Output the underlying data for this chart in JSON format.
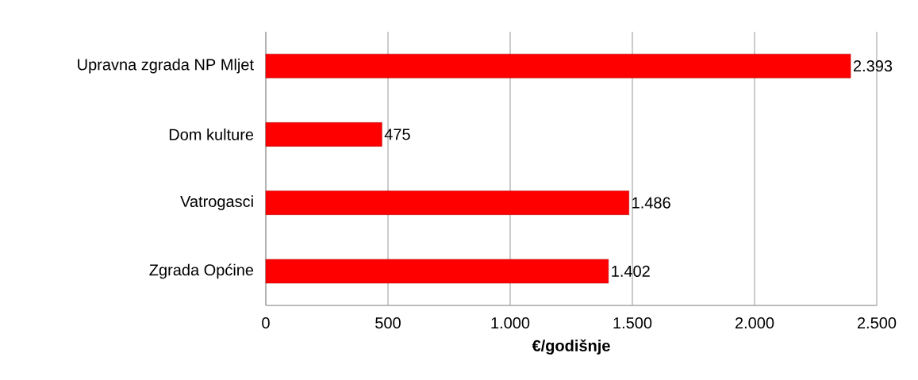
{
  "chart_data": {
    "type": "bar",
    "orientation": "horizontal",
    "xlabel": "€/godišnje",
    "categories": [
      "Upravna zgrada NP Mljet",
      "Dom kulture",
      "Vatrogasci",
      "Zgrada Općine"
    ],
    "values": [
      2393,
      475,
      1486,
      1402
    ],
    "value_labels": [
      "2.393",
      "475",
      "1.486",
      "1.402"
    ],
    "color": "#ff0000",
    "xlim": [
      0,
      2500
    ],
    "xticks": [
      0,
      500,
      {
        "value": 1000,
        "label": "1.000"
      },
      {
        "value": 1500,
        "label": "1.500"
      },
      {
        "value": 2000,
        "label": "2.000"
      },
      {
        "value": 2500,
        "label": "2.500"
      }
    ],
    "grid": "x"
  }
}
